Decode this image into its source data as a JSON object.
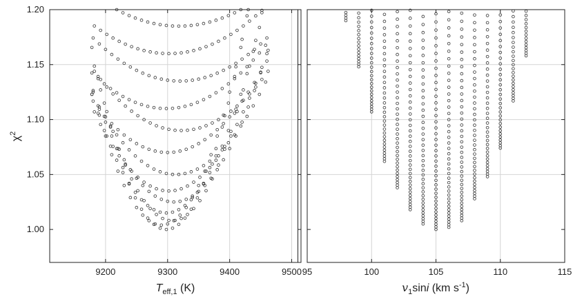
{
  "chart_data": [
    {
      "type": "scatter",
      "panel": "left",
      "xlabel": "T_eff,1 (K)",
      "xlabel_main": "T",
      "xlabel_sub": "eff,1",
      "xlabel_unit": " (K)",
      "ylabel": "χ2",
      "ylabel_main": "χ",
      "ylabel_sup": "2",
      "xlim": [
        9110,
        9515
      ],
      "ylim": [
        0.97,
        1.2
      ],
      "xticks": [
        9200,
        9300,
        9400,
        9500
      ],
      "yticks": [
        1.0,
        1.05,
        1.1,
        1.15,
        1.2
      ],
      "ytick_labels": [
        "1.00",
        "1.05",
        "1.10",
        "1.15",
        "1.20"
      ],
      "xgrid": [
        9200,
        9300,
        9400,
        9500
      ],
      "ygrid": [
        1.05,
        1.1,
        1.15
      ],
      "grid": true,
      "extra_vline": 9510,
      "curves": [
        {
          "center": 9300,
          "min": 1.0,
          "curv": 4.6e-05
        },
        {
          "center": 9290,
          "min": 1.004,
          "curv": 4e-05
        },
        {
          "center": 9305,
          "min": 1.008,
          "curv": 3.6e-05
        },
        {
          "center": 9300,
          "min": 1.015,
          "curv": 3e-05
        },
        {
          "center": 9310,
          "min": 1.025,
          "curv": 2.4e-05
        },
        {
          "center": 9300,
          "min": 1.035,
          "curv": 2e-05
        },
        {
          "center": 9315,
          "min": 1.05,
          "curv": 1.6e-05
        },
        {
          "center": 9300,
          "min": 1.07,
          "curv": 1.3e-05
        },
        {
          "center": 9320,
          "min": 1.09,
          "curv": 1.1e-05
        },
        {
          "center": 9300,
          "min": 1.11,
          "curv": 9e-06
        },
        {
          "center": 9320,
          "min": 1.135,
          "curv": 8e-06
        },
        {
          "center": 9300,
          "min": 1.16,
          "curv": 7e-06
        },
        {
          "center": 9320,
          "min": 1.185,
          "curv": 6e-06
        }
      ],
      "x_step": 10,
      "x_range": [
        9180,
        9460
      ]
    },
    {
      "type": "scatter",
      "panel": "right",
      "xlabel": "v_1sini (km s^-1)",
      "xlabel_v": "v",
      "xlabel_v_sub": "1",
      "xlabel_sin": "sin",
      "xlabel_i": "i",
      "xlabel_unit": " (km s",
      "xlabel_unit_sup": "-1",
      "xlabel_close": ")",
      "xlim": [
        95,
        115
      ],
      "ylim": [
        0.97,
        1.2
      ],
      "xticks": [
        95,
        100,
        105,
        110,
        115
      ],
      "xgrid": [
        100,
        105,
        110
      ],
      "ygrid": [
        1.05,
        1.1,
        1.15
      ],
      "grid": true,
      "columns": [
        {
          "x": 98,
          "min": 1.19
        },
        {
          "x": 99,
          "min": 1.148
        },
        {
          "x": 100,
          "min": 1.107
        },
        {
          "x": 101,
          "min": 1.062
        },
        {
          "x": 102,
          "min": 1.038
        },
        {
          "x": 103,
          "min": 1.018
        },
        {
          "x": 104,
          "min": 1.005
        },
        {
          "x": 105,
          "min": 1.0
        },
        {
          "x": 106,
          "min": 1.002
        },
        {
          "x": 107,
          "min": 1.008
        },
        {
          "x": 108,
          "min": 1.028
        },
        {
          "x": 109,
          "min": 1.048
        },
        {
          "x": 110,
          "min": 1.074
        },
        {
          "x": 111,
          "min": 1.117
        },
        {
          "x": 112,
          "min": 1.158
        }
      ],
      "y_step": 0.0022
    }
  ]
}
